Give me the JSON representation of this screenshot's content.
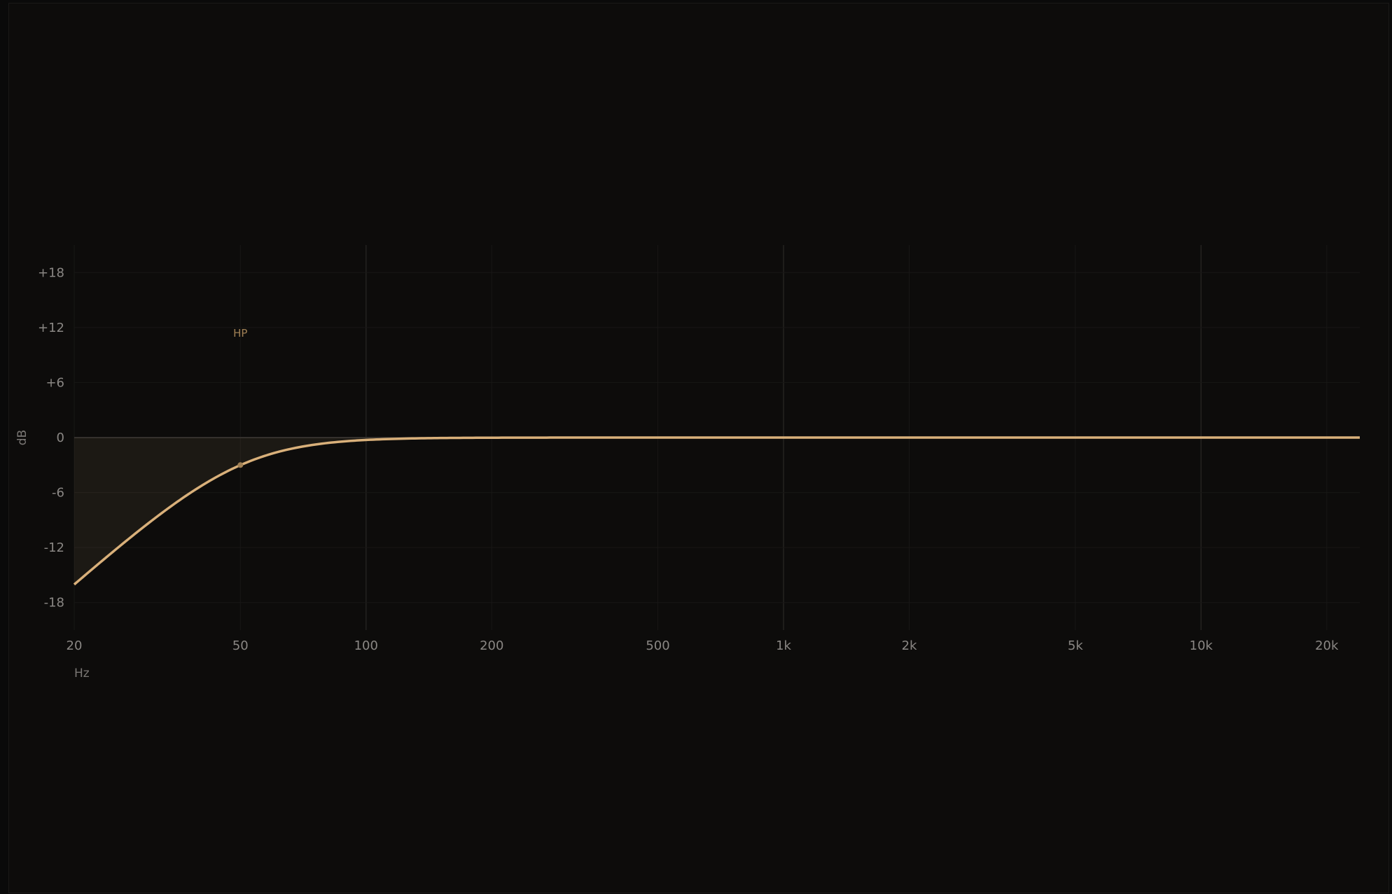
{
  "chart_data": {
    "type": "line",
    "title": "",
    "xlabel": "Hz",
    "ylabel": "dB",
    "x_scale": "log",
    "xlim": [
      20,
      24000
    ],
    "ylim": [
      -21,
      21
    ],
    "x_ticks": [
      {
        "value": 20,
        "label": "20"
      },
      {
        "value": 50,
        "label": "50"
      },
      {
        "value": 100,
        "label": "100"
      },
      {
        "value": 200,
        "label": "200"
      },
      {
        "value": 500,
        "label": "500"
      },
      {
        "value": 1000,
        "label": "1k"
      },
      {
        "value": 2000,
        "label": "2k"
      },
      {
        "value": 5000,
        "label": "5k"
      },
      {
        "value": 10000,
        "label": "10k"
      },
      {
        "value": 20000,
        "label": "20k"
      }
    ],
    "y_ticks": [
      {
        "value": 18,
        "label": "+18"
      },
      {
        "value": 12,
        "label": "+12"
      },
      {
        "value": 6,
        "label": "+6"
      },
      {
        "value": 0,
        "label": "0"
      },
      {
        "value": -6,
        "label": "-6"
      },
      {
        "value": -12,
        "label": "-12"
      },
      {
        "value": -18,
        "label": "-18"
      }
    ],
    "grid": true,
    "series": [
      {
        "color": "#d9b07a",
        "filter_type": "high-pass",
        "cutoff_hz": 50,
        "order": 2,
        "points": [
          [
            20,
            -16.1
          ],
          [
            25,
            -12.2
          ],
          [
            30,
            -9.2
          ],
          [
            35,
            -7.0
          ],
          [
            40,
            -5.2
          ],
          [
            50,
            -3.0
          ],
          [
            60,
            -1.8
          ],
          [
            70,
            -1.1
          ],
          [
            80,
            -0.7
          ],
          [
            100,
            -0.3
          ],
          [
            150,
            -0.06
          ],
          [
            200,
            -0.02
          ],
          [
            500,
            0
          ],
          [
            1000,
            0
          ],
          [
            24000,
            0
          ]
        ]
      }
    ],
    "markers": [
      {
        "label": "HP",
        "x": 50,
        "y": -3.0,
        "color": "#a08055"
      }
    ]
  }
}
